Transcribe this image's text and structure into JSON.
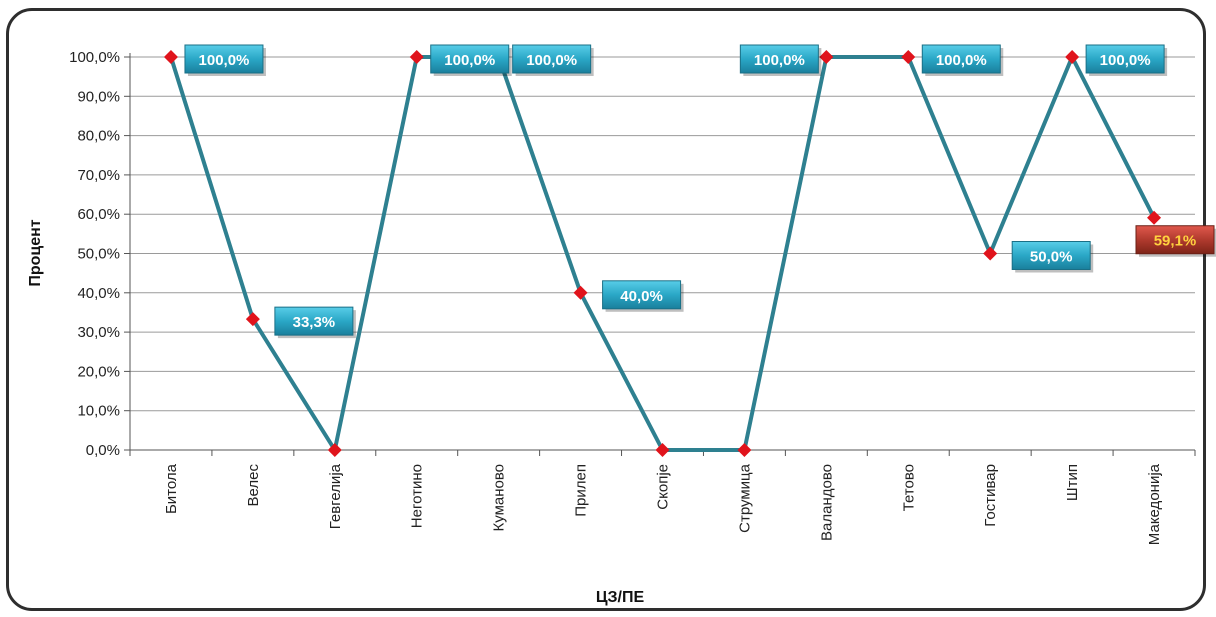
{
  "chart_data": {
    "type": "line",
    "title": "",
    "xlabel": "ЦЗ/ПЕ",
    "ylabel": "Процент",
    "ylim": [
      0,
      100
    ],
    "y_ticks": [
      "0,0%",
      "10,0%",
      "20,0%",
      "30,0%",
      "40,0%",
      "50,0%",
      "60,0%",
      "70,0%",
      "80,0%",
      "90,0%",
      "100,0%"
    ],
    "categories": [
      "Битола",
      "Велес",
      "Гевгелија",
      "Неготино",
      "Куманово",
      "Прилеп",
      "Скопје",
      "Струмица",
      "Валандово",
      "Тетово",
      "Гостивар",
      "Штип",
      "Македонија"
    ],
    "values": [
      100.0,
      33.3,
      0.0,
      100.0,
      100.0,
      40.0,
      0.0,
      0.0,
      100.0,
      100.0,
      50.0,
      100.0,
      59.1
    ],
    "data_labels": [
      "100,0%",
      "33,3%",
      "",
      "100,0%",
      "100,0%",
      "40,0%",
      "",
      "",
      "100,0%",
      "100,0%",
      "50,0%",
      "100,0%",
      "59,1%"
    ],
    "grid": true,
    "legend": "none",
    "colors": {
      "line": "#2e8090",
      "marker": "#e0141c",
      "label_fill": "#2aa7c6",
      "label_fill_highlight": "#a8322a",
      "label_text_highlight": "#ffd23f",
      "grid": "#9a9a9a"
    }
  }
}
